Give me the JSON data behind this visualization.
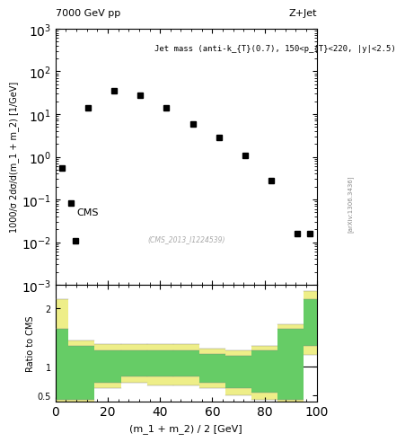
{
  "title_left": "7000 GeV pp",
  "title_right": "Z+Jet",
  "annotation": "Jet mass (anti-k_{T}(0.7), 150<p_{T}<220, |y|<2.5)",
  "cms_label": "CMS",
  "paper_id": "(CMS_2013_I1224539)",
  "arxiv_id": "[arXiv:1306.3436]",
  "xlabel": "(m_1 + m_2) / 2 [GeV]",
  "ylabel": "1000/σ 2dσ/d(m_1 + m_2) [1/GeV]",
  "ylabel_ratio": "Ratio to CMS",
  "data_x": [
    2.5,
    7.5,
    12.5,
    22.5,
    32.5,
    42.5,
    52.5,
    62.5,
    72.5,
    82.5,
    92.5,
    97.5
  ],
  "data_y": [
    0.55,
    0.011,
    14.0,
    35.0,
    28.0,
    14.0,
    6.0,
    2.8,
    1.1,
    0.28,
    0.016,
    0.016
  ],
  "xlim": [
    0,
    100
  ],
  "ylim_log": [
    0.001,
    1000.0
  ],
  "ylim_ratio": [
    0.4,
    2.4
  ],
  "ratio_yticks": [
    0.5,
    1,
    2
  ],
  "background_color": "#ffffff",
  "data_color": "#000000",
  "marker": "s",
  "markersize": 5,
  "green_color": "#66cc66",
  "yellow_color": "#eeee88",
  "ratio_bin_edges": [
    0,
    5,
    15,
    25,
    35,
    45,
    55,
    65,
    75,
    85,
    95,
    100
  ],
  "green_low": [
    0.42,
    0.42,
    0.72,
    0.82,
    0.82,
    0.82,
    0.72,
    0.62,
    0.55,
    0.42,
    1.35
  ],
  "green_high": [
    1.65,
    1.35,
    1.28,
    1.28,
    1.28,
    1.28,
    1.22,
    1.18,
    1.28,
    1.65,
    2.15
  ],
  "yellow_low": [
    0.38,
    0.35,
    0.62,
    0.72,
    0.68,
    0.68,
    0.62,
    0.5,
    0.42,
    0.35,
    1.2
  ],
  "yellow_high": [
    2.15,
    1.45,
    1.38,
    1.38,
    1.38,
    1.38,
    1.3,
    1.28,
    1.35,
    1.72,
    2.3
  ]
}
